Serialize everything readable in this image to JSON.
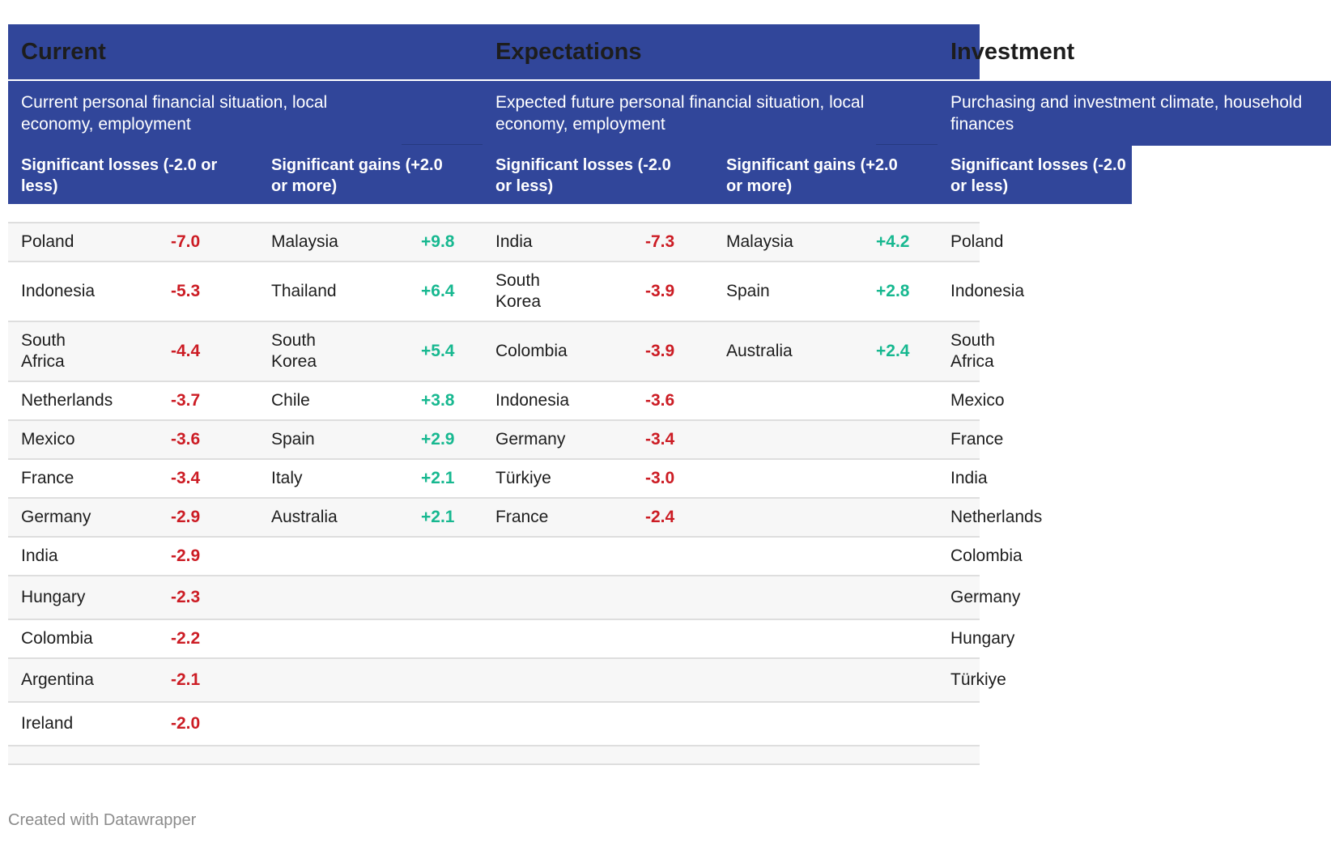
{
  "groups": [
    {
      "title": "Current",
      "subtitle": "Current personal financial situation, local economy, employment"
    },
    {
      "title": "Expectations",
      "subtitle": "Expected future personal financial situation, local economy, employment"
    },
    {
      "title": "Investment",
      "subtitle": "Purchasing and investment climate, household finances"
    }
  ],
  "columns": [
    {
      "group": 0,
      "label": "Significant losses (-2.0 or less)"
    },
    {
      "group": 0,
      "label": "Significant gains (+2.0 or more)"
    },
    {
      "group": 1,
      "label": "Significant losses (-2.0 or less)"
    },
    {
      "group": 1,
      "label": "Significant gains (+2.0 or more)"
    },
    {
      "group": 2,
      "label": "Significant losses (-2.0 or less)"
    }
  ],
  "rows": [
    [
      {
        "country": "Poland",
        "value": "-7.0"
      },
      {
        "country": "Malaysia",
        "value": "+9.8"
      },
      {
        "country": "India",
        "value": "-7.3"
      },
      {
        "country": "Malaysia",
        "value": "+4.2"
      },
      {
        "country": "Poland",
        "value": ""
      }
    ],
    [
      {
        "country": "Indonesia",
        "value": "-5.3"
      },
      {
        "country": "Thailand",
        "value": "+6.4"
      },
      {
        "country": "South Korea",
        "value": "-3.9"
      },
      {
        "country": "Spain",
        "value": "+2.8"
      },
      {
        "country": "Indonesia",
        "value": ""
      }
    ],
    [
      {
        "country": "South Africa",
        "value": "-4.4"
      },
      {
        "country": "South Korea",
        "value": "+5.4"
      },
      {
        "country": "Colombia",
        "value": "-3.9"
      },
      {
        "country": "Australia",
        "value": "+2.4"
      },
      {
        "country": "South Africa",
        "value": ""
      }
    ],
    [
      {
        "country": "Netherlands",
        "value": "-3.7"
      },
      {
        "country": "Chile",
        "value": "+3.8"
      },
      {
        "country": "Indonesia",
        "value": "-3.6"
      },
      {
        "country": "",
        "value": ""
      },
      {
        "country": "Mexico",
        "value": ""
      }
    ],
    [
      {
        "country": "Mexico",
        "value": "-3.6"
      },
      {
        "country": "Spain",
        "value": "+2.9"
      },
      {
        "country": "Germany",
        "value": "-3.4"
      },
      {
        "country": "",
        "value": ""
      },
      {
        "country": "France",
        "value": ""
      }
    ],
    [
      {
        "country": "France",
        "value": "-3.4"
      },
      {
        "country": "Italy",
        "value": "+2.1"
      },
      {
        "country": "Türkiye",
        "value": "-3.0"
      },
      {
        "country": "",
        "value": ""
      },
      {
        "country": "India",
        "value": ""
      }
    ],
    [
      {
        "country": "Germany",
        "value": "-2.9"
      },
      {
        "country": "Australia",
        "value": "+2.1"
      },
      {
        "country": "France",
        "value": "-2.4"
      },
      {
        "country": "",
        "value": ""
      },
      {
        "country": "Netherlands",
        "value": ""
      }
    ],
    [
      {
        "country": "India",
        "value": "-2.9"
      },
      {
        "country": "",
        "value": ""
      },
      {
        "country": "",
        "value": ""
      },
      {
        "country": "",
        "value": ""
      },
      {
        "country": "Colombia",
        "value": ""
      }
    ],
    [
      {
        "country": "Hungary",
        "value": "-2.3"
      },
      {
        "country": "",
        "value": ""
      },
      {
        "country": "",
        "value": ""
      },
      {
        "country": "",
        "value": ""
      },
      {
        "country": "Germany",
        "value": ""
      }
    ],
    [
      {
        "country": "Colombia",
        "value": "-2.2"
      },
      {
        "country": "",
        "value": ""
      },
      {
        "country": "",
        "value": ""
      },
      {
        "country": "",
        "value": ""
      },
      {
        "country": "Hungary",
        "value": ""
      }
    ],
    [
      {
        "country": "Argentina",
        "value": "-2.1"
      },
      {
        "country": "",
        "value": ""
      },
      {
        "country": "",
        "value": ""
      },
      {
        "country": "",
        "value": ""
      },
      {
        "country": "Türkiye",
        "value": ""
      }
    ],
    [
      {
        "country": "Ireland",
        "value": "-2.0"
      },
      {
        "country": "",
        "value": ""
      },
      {
        "country": "",
        "value": ""
      },
      {
        "country": "",
        "value": ""
      },
      {
        "country": "",
        "value": ""
      }
    ]
  ],
  "footer": {
    "credit": "Created with Datawrapper"
  },
  "colors": {
    "header": "#31469a",
    "negative": "#cc1c24",
    "positive": "#17b890"
  }
}
